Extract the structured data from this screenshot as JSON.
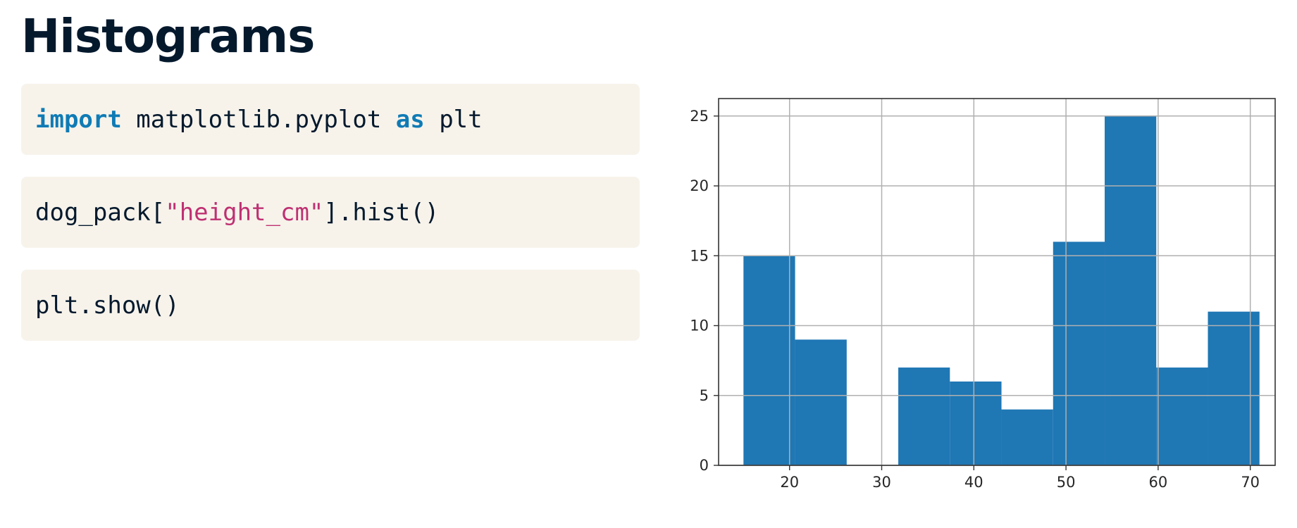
{
  "slide": {
    "title": "Histograms"
  },
  "code": {
    "line1": {
      "kw_import": "import",
      "module": " matplotlib.pyplot ",
      "kw_as": "as",
      "alias": " plt"
    },
    "line2": {
      "prefix": "dog_pack[",
      "str": "\"height_cm\"",
      "suffix": "].hist()"
    },
    "line3": {
      "text": "plt.show()"
    }
  },
  "colors": {
    "bar": "#1f77b4",
    "grid": "#b0b0b0",
    "keyword": "#0f7bb5",
    "string": "#bf3072",
    "code_bg": "#f7f3eb"
  },
  "chart_data": {
    "type": "bar",
    "title": "",
    "xlabel": "",
    "ylabel": "",
    "grid": true,
    "xlim": [
      12.3,
      72.7
    ],
    "ylim": [
      0,
      26.25
    ],
    "xticks": [
      20,
      30,
      40,
      50,
      60,
      70
    ],
    "yticks": [
      0,
      5,
      10,
      15,
      20,
      25
    ],
    "bins": [
      {
        "start": 15.0,
        "end": 20.6,
        "count": 15
      },
      {
        "start": 20.6,
        "end": 26.2,
        "count": 9
      },
      {
        "start": 26.2,
        "end": 31.8,
        "count": 0
      },
      {
        "start": 31.8,
        "end": 37.4,
        "count": 7
      },
      {
        "start": 37.4,
        "end": 43.0,
        "count": 6
      },
      {
        "start": 43.0,
        "end": 48.6,
        "count": 4
      },
      {
        "start": 48.6,
        "end": 54.2,
        "count": 16
      },
      {
        "start": 54.2,
        "end": 59.8,
        "count": 25
      },
      {
        "start": 59.8,
        "end": 65.4,
        "count": 7
      },
      {
        "start": 65.4,
        "end": 71.0,
        "count": 11
      }
    ]
  }
}
